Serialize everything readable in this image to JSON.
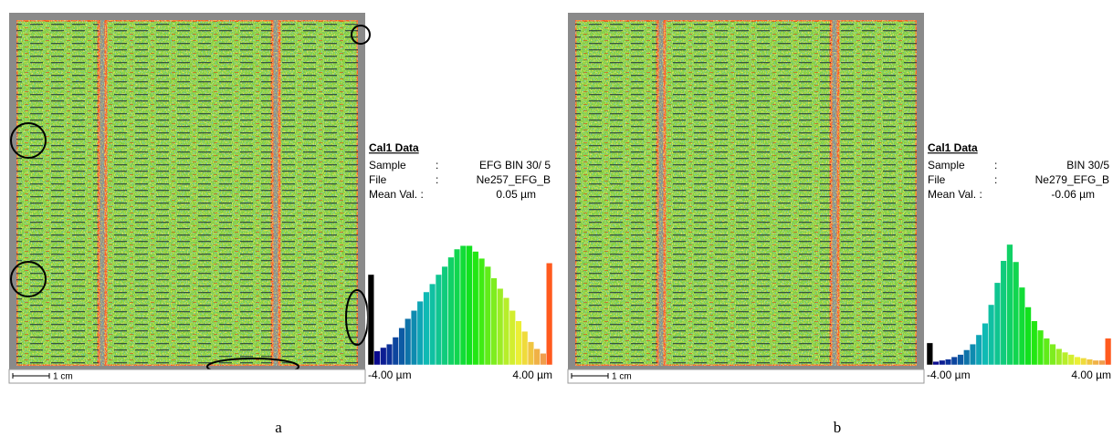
{
  "panels": [
    {
      "caption": "a",
      "info_title": "Cal1 Data",
      "rows": [
        [
          "Sample",
          ":",
          "EFG BIN 30/ 5"
        ],
        [
          "File",
          ":",
          "Ne257_EFG_B"
        ],
        [
          "Mean Val. :",
          "0.05 µm"
        ]
      ],
      "scale_label": "1 cm",
      "histogram": {
        "type": "histogram",
        "xlim": [
          -4,
          4
        ],
        "xticks": [
          {
            "value": -4,
            "label": "-4.00 µm"
          },
          {
            "value": 4,
            "label": "4.00 µm"
          }
        ],
        "values": [
          78,
          12,
          15,
          18,
          24,
          32,
          40,
          47,
          55,
          63,
          70,
          78,
          85,
          93,
          100,
          103,
          103,
          98,
          92,
          85,
          75,
          66,
          58,
          47,
          38,
          29,
          20,
          14,
          10,
          88
        ]
      }
    },
    {
      "caption": "b",
      "info_title": "Cal1 Data",
      "rows": [
        [
          "Sample",
          ":",
          "BIN 30/5"
        ],
        [
          "File",
          ":",
          "Ne279_EFG_B"
        ],
        [
          "Mean Val. :",
          "-0.06 µm"
        ]
      ],
      "scale_label": "1 cm",
      "histogram": {
        "type": "histogram",
        "xlim": [
          -4,
          4
        ],
        "xticks": [
          {
            "value": -4,
            "label": "-4.00 µm"
          },
          {
            "value": 4,
            "label": "4.00 µm"
          }
        ],
        "values": [
          19,
          3,
          4,
          5,
          7,
          9,
          13,
          18,
          26,
          36,
          52,
          71,
          90,
          104,
          89,
          67,
          50,
          38,
          30,
          23,
          18,
          14,
          11,
          9,
          7,
          6,
          5,
          4,
          4,
          23
        ]
      }
    }
  ]
}
